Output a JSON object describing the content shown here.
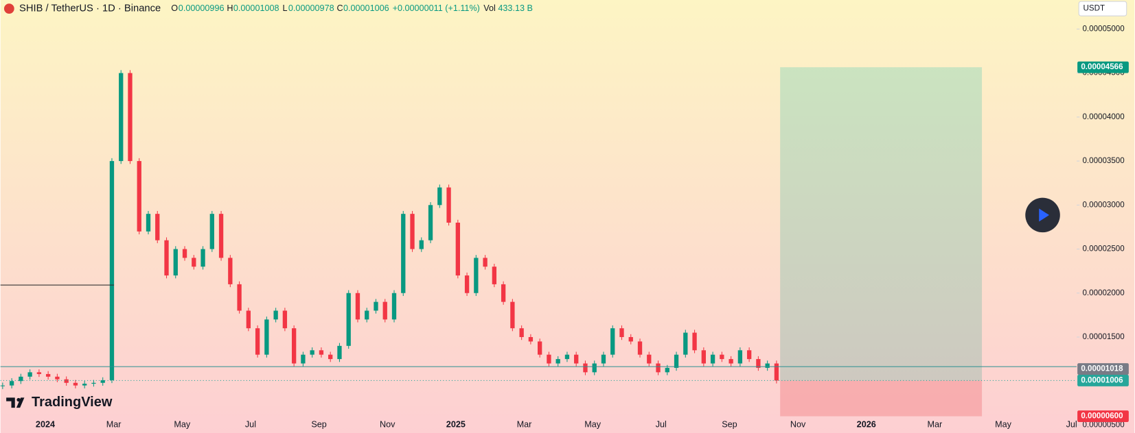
{
  "chart_data": {
    "type": "candlestick",
    "title": "SHIB / TetherUS · 1D · Binance",
    "ohlc": {
      "o_label": "O",
      "o": "0.00000996",
      "h_label": "H",
      "h": "0.00001008",
      "l_label": "L",
      "l": "0.00000978",
      "c_label": "C",
      "c": "0.00001006",
      "change": "+0.00000011 (+1.11%)",
      "vol_label": "Vol",
      "vol": "433.13 B"
    },
    "currency": "USDT",
    "brand": "TradingView",
    "x_labels": [
      "2024",
      "Mar",
      "May",
      "Jul",
      "Sep",
      "Nov",
      "2025",
      "Mar",
      "May",
      "Jul",
      "Sep",
      "Nov",
      "2026",
      "Mar",
      "May",
      "Jul"
    ],
    "values": [
      9.5e-06,
      1e-05,
      1.05e-05,
      1.1e-05,
      1.08e-05,
      1.05e-05,
      1.02e-05,
      9.8e-06,
      9.5e-06,
      9.7e-06,
      9.8e-06,
      1.01e-05,
      3.5e-05,
      4.5e-05,
      3.5e-05,
      2.7e-05,
      2.9e-05,
      2.6e-05,
      2.2e-05,
      2.5e-05,
      2.4e-05,
      2.3e-05,
      2.5e-05,
      2.9e-05,
      2.4e-05,
      2.1e-05,
      1.8e-05,
      1.6e-05,
      1.3e-05,
      1.7e-05,
      1.8e-05,
      1.6e-05,
      1.2e-05,
      1.3e-05,
      1.35e-05,
      1.3e-05,
      1.25e-05,
      1.4e-05,
      2e-05,
      1.7e-05,
      1.8e-05,
      1.9e-05,
      1.7e-05,
      2e-05,
      2.9e-05,
      2.5e-05,
      2.6e-05,
      3e-05,
      3.2e-05,
      2.8e-05,
      2.2e-05,
      2e-05,
      2.4e-05,
      2.3e-05,
      2.1e-05,
      1.9e-05,
      1.6e-05,
      1.5e-05,
      1.45e-05,
      1.3e-05,
      1.2e-05,
      1.25e-05,
      1.3e-05,
      1.2e-05,
      1.1e-05,
      1.2e-05,
      1.3e-05,
      1.6e-05,
      1.5e-05,
      1.45e-05,
      1.3e-05,
      1.2e-05,
      1.1e-05,
      1.15e-05,
      1.3e-05,
      1.55e-05,
      1.35e-05,
      1.2e-05,
      1.3e-05,
      1.25e-05,
      1.2e-05,
      1.35e-05,
      1.25e-05,
      1.15e-05,
      1.2e-05,
      1.006e-05
    ],
    "up_color": "#089981",
    "down_color": "#f23645",
    "ylim": [
      4.1e-06,
      5.33e-05
    ],
    "yticks": [
      {
        "value": 5e-06,
        "label": "0.00000500"
      },
      {
        "value": 1e-05,
        "label": "0.00001000"
      },
      {
        "value": 1.5e-05,
        "label": "0.00001500"
      },
      {
        "value": 2e-05,
        "label": "0.00002000"
      },
      {
        "value": 2.5e-05,
        "label": "0.00002500"
      },
      {
        "value": 3e-05,
        "label": "0.00003000"
      },
      {
        "value": 3.5e-05,
        "label": "0.00003500"
      },
      {
        "value": 4e-05,
        "label": "0.00004000"
      },
      {
        "value": 4.5e-05,
        "label": "0.00004500"
      },
      {
        "value": 5e-05,
        "label": "0.00005000"
      }
    ],
    "position": {
      "target": {
        "value": 4.566e-05,
        "label": "0.00004566",
        "color": "#089981"
      },
      "entry": {
        "value": 1.006e-05,
        "label": "0.00001006",
        "color": "#26a69a"
      },
      "stop": {
        "value": 6e-06,
        "label": "0.00000600",
        "color": "#f23645"
      }
    },
    "countdown_price": {
      "value": 1.018e-05,
      "label": "0.00001018"
    }
  }
}
